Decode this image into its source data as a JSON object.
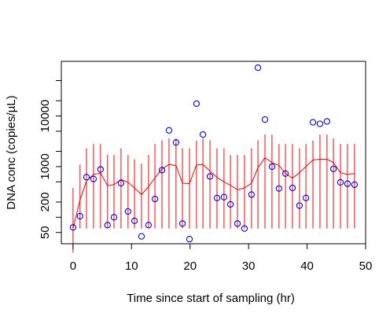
{
  "chart_data": {
    "type": "scatter",
    "xlabel": "Time since start of sampling (hr)",
    "ylabel": "DNA conc (copies/µL)",
    "y_scale": "log",
    "xlim": [
      -2,
      50
    ],
    "ylim": [
      30,
      120000
    ],
    "x_ticks": [
      0,
      10,
      20,
      30,
      40,
      50
    ],
    "y_ticks": [
      50,
      200,
      1000,
      10000
    ],
    "y_tick_labels": [
      "50",
      "200",
      "1000",
      "10000"
    ],
    "grid": false,
    "legend": "none",
    "colors": {
      "points": "#0000ff",
      "line": "#ff0000",
      "intervals": "#ff0000",
      "axis": "#000000"
    },
    "points": [
      [
        0.0,
        63
      ],
      [
        1.2,
        105
      ],
      [
        2.3,
        620
      ],
      [
        3.5,
        570
      ],
      [
        4.7,
        880
      ],
      [
        5.9,
        70
      ],
      [
        7.0,
        100
      ],
      [
        8.2,
        470
      ],
      [
        9.4,
        130
      ],
      [
        10.5,
        85
      ],
      [
        11.7,
        42
      ],
      [
        12.9,
        70
      ],
      [
        14.0,
        230
      ],
      [
        15.2,
        850
      ],
      [
        16.4,
        5200
      ],
      [
        17.6,
        3000
      ],
      [
        18.7,
        75
      ],
      [
        19.9,
        37
      ],
      [
        21.1,
        17500
      ],
      [
        22.2,
        4300
      ],
      [
        23.4,
        640
      ],
      [
        24.6,
        240
      ],
      [
        25.8,
        250
      ],
      [
        26.9,
        180
      ],
      [
        28.1,
        75
      ],
      [
        29.3,
        60
      ],
      [
        30.5,
        280
      ],
      [
        31.6,
        90000
      ],
      [
        32.8,
        8500
      ],
      [
        34.0,
        1000
      ],
      [
        35.2,
        370
      ],
      [
        36.3,
        730
      ],
      [
        37.5,
        380
      ],
      [
        38.7,
        170
      ],
      [
        39.8,
        240
      ],
      [
        41.0,
        7500
      ],
      [
        42.2,
        7000
      ],
      [
        43.4,
        7800
      ],
      [
        44.5,
        900
      ],
      [
        45.7,
        490
      ],
      [
        46.9,
        460
      ],
      [
        48.1,
        440
      ]
    ],
    "fitted_line": [
      [
        0.0,
        60
      ],
      [
        1.2,
        220
      ],
      [
        2.3,
        520
      ],
      [
        3.5,
        700
      ],
      [
        4.7,
        750
      ],
      [
        5.9,
        420
      ],
      [
        7.0,
        440
      ],
      [
        8.2,
        560
      ],
      [
        9.4,
        490
      ],
      [
        10.5,
        380
      ],
      [
        11.7,
        280
      ],
      [
        12.9,
        400
      ],
      [
        14.0,
        600
      ],
      [
        15.2,
        900
      ],
      [
        16.4,
        1100
      ],
      [
        17.6,
        1050
      ],
      [
        18.7,
        470
      ],
      [
        19.9,
        460
      ],
      [
        21.1,
        1080
      ],
      [
        22.2,
        1100
      ],
      [
        23.4,
        820
      ],
      [
        24.6,
        610
      ],
      [
        25.8,
        500
      ],
      [
        26.9,
        430
      ],
      [
        28.1,
        350
      ],
      [
        29.3,
        380
      ],
      [
        30.5,
        470
      ],
      [
        31.6,
        950
      ],
      [
        32.8,
        1500
      ],
      [
        34.0,
        1200
      ],
      [
        35.2,
        1050
      ],
      [
        36.3,
        740
      ],
      [
        37.5,
        590
      ],
      [
        38.7,
        760
      ],
      [
        39.8,
        1000
      ],
      [
        41.0,
        1350
      ],
      [
        42.2,
        1400
      ],
      [
        43.4,
        1400
      ],
      [
        44.5,
        1200
      ],
      [
        45.7,
        760
      ],
      [
        46.9,
        700
      ],
      [
        48.1,
        730
      ]
    ],
    "intervals": [
      [
        0.0,
        20,
        380
      ],
      [
        1.2,
        60,
        1100
      ],
      [
        2.3,
        60,
        2300
      ],
      [
        3.5,
        60,
        2800
      ],
      [
        4.7,
        60,
        2800
      ],
      [
        5.9,
        60,
        1700
      ],
      [
        7.0,
        60,
        1700
      ],
      [
        8.2,
        60,
        2300
      ],
      [
        9.4,
        60,
        1700
      ],
      [
        10.5,
        60,
        1400
      ],
      [
        11.7,
        60,
        1150
      ],
      [
        12.9,
        60,
        1700
      ],
      [
        14.0,
        60,
        2800
      ],
      [
        15.2,
        60,
        3300
      ],
      [
        16.4,
        60,
        3600
      ],
      [
        17.6,
        60,
        3600
      ],
      [
        18.7,
        60,
        2300
      ],
      [
        19.9,
        60,
        2300
      ],
      [
        21.1,
        60,
        3300
      ],
      [
        22.2,
        60,
        3600
      ],
      [
        23.4,
        60,
        3300
      ],
      [
        24.6,
        60,
        2300
      ],
      [
        25.8,
        60,
        2300
      ],
      [
        26.9,
        60,
        1700
      ],
      [
        28.1,
        60,
        1700
      ],
      [
        29.3,
        60,
        1700
      ],
      [
        30.5,
        60,
        2300
      ],
      [
        31.6,
        60,
        3300
      ],
      [
        32.8,
        60,
        4300
      ],
      [
        34.0,
        60,
        4300
      ],
      [
        35.2,
        60,
        2800
      ],
      [
        36.3,
        60,
        2800
      ],
      [
        37.5,
        60,
        2800
      ],
      [
        38.7,
        60,
        2300
      ],
      [
        39.8,
        60,
        2800
      ],
      [
        41.0,
        60,
        3300
      ],
      [
        42.2,
        60,
        4300
      ],
      [
        43.4,
        60,
        4300
      ],
      [
        44.5,
        60,
        3600
      ],
      [
        45.7,
        60,
        2800
      ],
      [
        46.9,
        60,
        2800
      ],
      [
        48.1,
        60,
        2800
      ]
    ]
  }
}
